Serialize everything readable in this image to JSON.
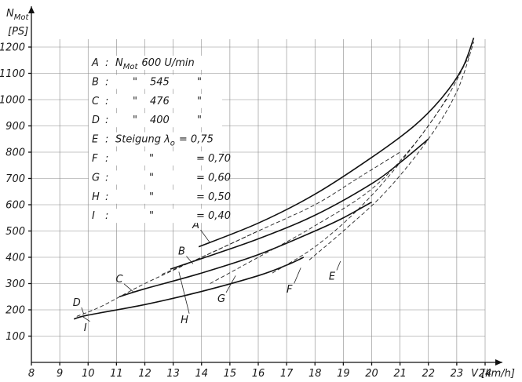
{
  "chart_data": {
    "type": "line",
    "ylabel_main": "N",
    "ylabel_sub": "Mot",
    "ylabel_unit": "[PS]",
    "xlabel": "V [km/h]",
    "xlim": [
      8,
      24
    ],
    "ylim": [
      0,
      1200
    ],
    "x_ticks": [
      "8",
      "9",
      "10",
      "11",
      "12",
      "13",
      "14",
      "15",
      "16",
      "17",
      "18",
      "19",
      "20",
      "21",
      "22",
      "23",
      "24"
    ],
    "y_ticks": [
      "100",
      "200",
      "300",
      "400",
      "500",
      "600",
      "700",
      "800",
      "900",
      "1000",
      "1100",
      "1200"
    ],
    "legend": [
      {
        "key": "A",
        "sep": ":",
        "text": "N",
        "sub": "Mot",
        "rest": "600 U/min"
      },
      {
        "key": "B",
        "sep": ":",
        "text": "\"",
        "value": "545",
        "tail": "\""
      },
      {
        "key": "C",
        "sep": ":",
        "text": "\"",
        "value": "476",
        "tail": "\""
      },
      {
        "key": "D",
        "sep": ":",
        "text": "\"",
        "value": "400",
        "tail": "\""
      },
      {
        "key": "E",
        "sep": ":",
        "text": "Steigung λ",
        "sub": "o",
        "rest": "= 0,75"
      },
      {
        "key": "F",
        "sep": ":",
        "text": "\"",
        "rest": "= 0,70"
      },
      {
        "key": "G",
        "sep": ":",
        "text": "\"",
        "rest": "= 0,60"
      },
      {
        "key": "H",
        "sep": ":",
        "text": "\"",
        "rest": "= 0,50"
      },
      {
        "key": "I",
        "sep": ":",
        "text": "\"",
        "rest": "= 0,40"
      }
    ],
    "series": [
      {
        "name": "A",
        "style": "solid",
        "x": [
          13.9,
          16,
          18,
          20,
          21.5,
          22.5,
          23.2,
          23.6
        ],
        "y": [
          440,
          530,
          640,
          780,
          900,
          1010,
          1120,
          1235
        ]
      },
      {
        "name": "B",
        "style": "solid",
        "x": [
          12.9,
          14,
          16,
          18,
          20,
          21,
          22
        ],
        "y": [
          355,
          395,
          470,
          560,
          680,
          760,
          850
        ]
      },
      {
        "name": "C",
        "style": "solid",
        "x": [
          11.1,
          12,
          14,
          16,
          18,
          19,
          20
        ],
        "y": [
          250,
          280,
          340,
          410,
          500,
          550,
          610
        ]
      },
      {
        "name": "D",
        "style": "solid",
        "x": [
          9.5,
          10,
          12,
          14,
          16,
          17,
          17.6
        ],
        "y": [
          165,
          180,
          220,
          270,
          330,
          370,
          400
        ]
      },
      {
        "name": "E",
        "style": "dashed",
        "x": [
          17.8,
          19,
          20.5,
          22,
          23,
          23.6
        ],
        "y": [
          390,
          500,
          650,
          850,
          1030,
          1220
        ]
      },
      {
        "name": "F",
        "style": "dashed",
        "x": [
          16.5,
          18,
          19.5,
          21,
          22.5,
          23.5
        ],
        "y": [
          340,
          440,
          580,
          760,
          980,
          1180
        ]
      },
      {
        "name": "G",
        "style": "dashed",
        "x": [
          14.3,
          16,
          18,
          20,
          21.5,
          22.7
        ],
        "y": [
          300,
          400,
          520,
          660,
          830,
          1010
        ]
      },
      {
        "name": "H",
        "style": "dashed",
        "x": [
          12.6,
          14,
          16,
          18,
          19.5,
          21
        ],
        "y": [
          335,
          400,
          500,
          600,
          700,
          800
        ]
      },
      {
        "name": "I",
        "style": "dashed",
        "x": [
          9.6,
          10.5,
          12,
          14,
          16
        ],
        "y": [
          175,
          215,
          300,
          400,
          500
        ]
      }
    ],
    "curve_labels": [
      {
        "name": "A",
        "x": 13.8,
        "y": 510,
        "to_x": 14.3,
        "to_y": 455
      },
      {
        "name": "B",
        "x": 13.3,
        "y": 410,
        "to_x": 13.7,
        "to_y": 375
      },
      {
        "name": "C",
        "x": 11.1,
        "y": 305,
        "to_x": 11.6,
        "to_y": 268
      },
      {
        "name": "D",
        "x": 9.6,
        "y": 215,
        "to_x": 9.85,
        "to_y": 183
      },
      {
        "name": "E",
        "x": 18.6,
        "y": 315,
        "to_x": 18.9,
        "to_y": 385
      },
      {
        "name": "F",
        "x": 17.1,
        "y": 265,
        "to_x": 17.5,
        "to_y": 360
      },
      {
        "name": "G",
        "x": 14.7,
        "y": 230,
        "to_x": 15.2,
        "to_y": 330
      },
      {
        "name": "H",
        "x": 13.4,
        "y": 150,
        "to_x": 13.2,
        "to_y": 345
      },
      {
        "name": "I",
        "x": 9.9,
        "y": 120,
        "to_x": 9.8,
        "to_y": 175
      }
    ],
    "grid": true
  }
}
